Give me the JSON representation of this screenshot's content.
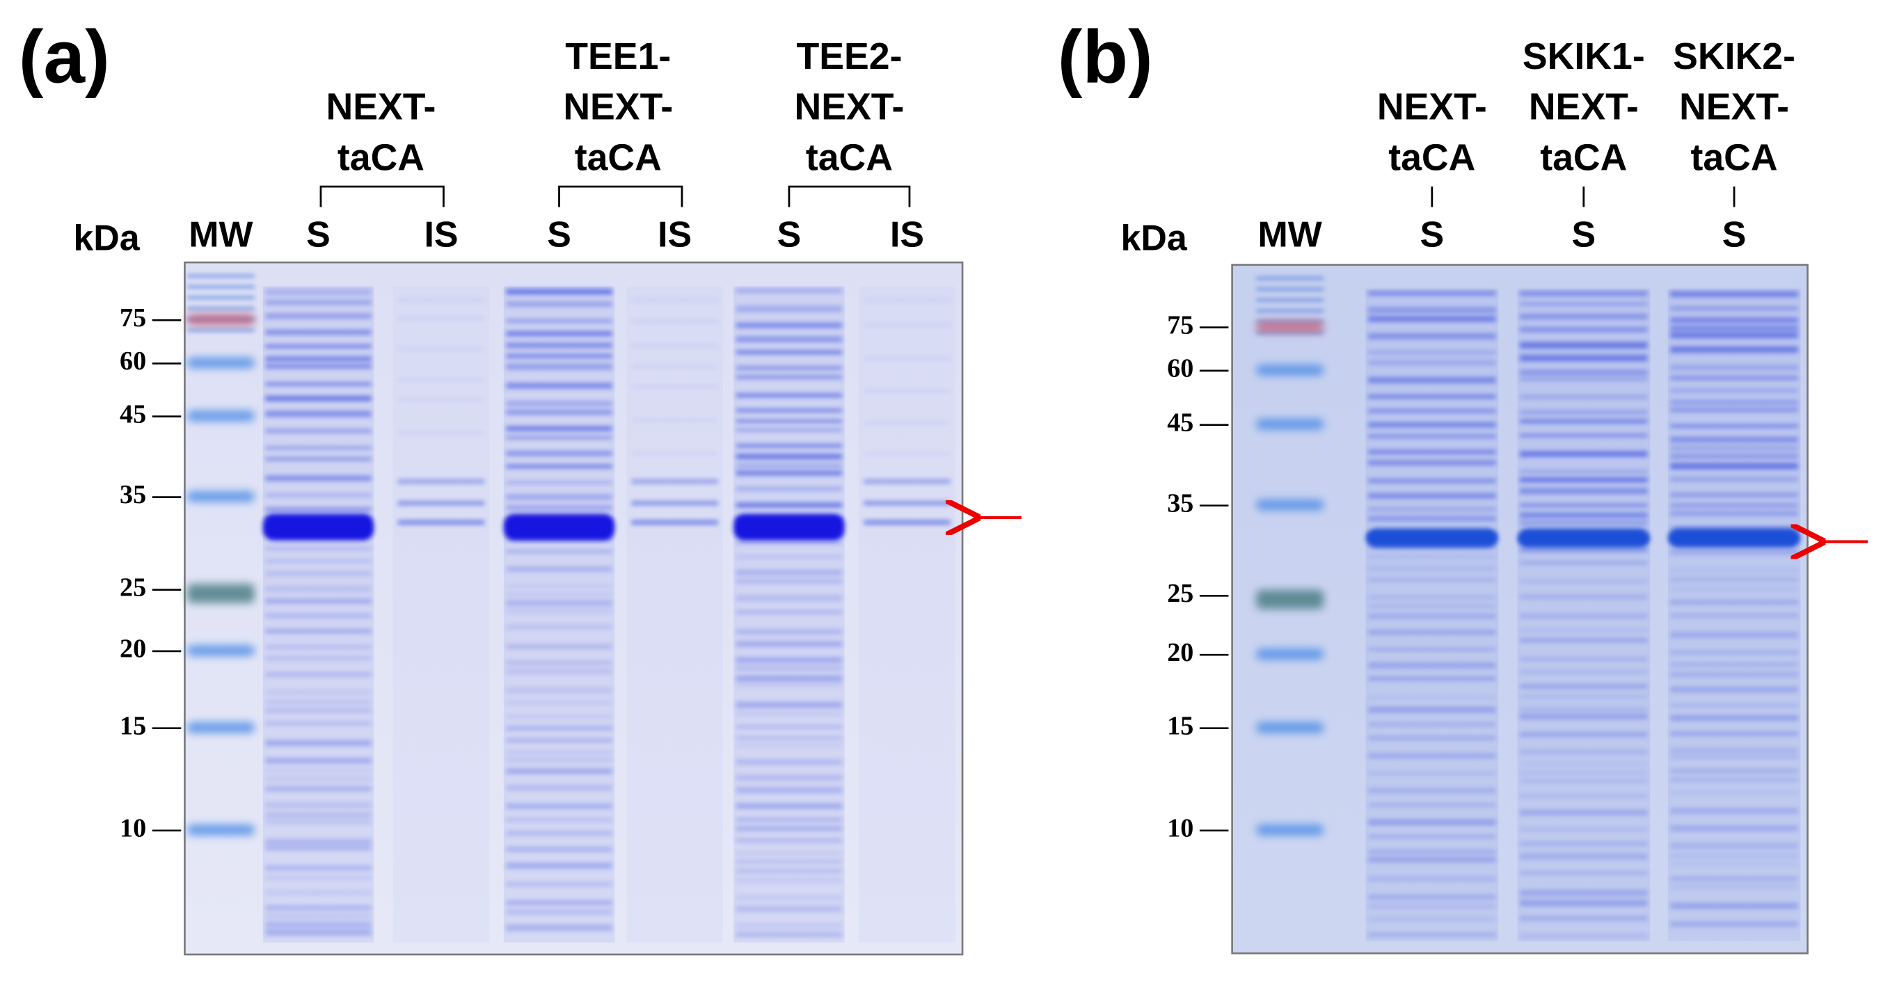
{
  "panels": [
    {
      "label": "(a)",
      "unit": "kDa",
      "groups": [
        {
          "header": [
            "NEXT-",
            "taCA"
          ]
        },
        {
          "header": [
            "TEE1-",
            "NEXT-",
            "taCA"
          ]
        },
        {
          "header": [
            "TEE2-",
            "NEXT-",
            "taCA"
          ]
        }
      ],
      "lanes": [
        "MW",
        "S",
        "IS",
        "S",
        "IS",
        "S",
        "IS"
      ],
      "markers": [
        "75",
        "60",
        "45",
        "35",
        "25",
        "20",
        "15",
        "10"
      ]
    },
    {
      "label": "(b)",
      "unit": "kDa",
      "groups": [
        {
          "header": [
            "NEXT-",
            "taCA"
          ]
        },
        {
          "header": [
            "SKIK1-",
            "NEXT-",
            "taCA"
          ]
        },
        {
          "header": [
            "SKIK2-",
            "NEXT-",
            "taCA"
          ]
        }
      ],
      "lanes": [
        "MW",
        "S",
        "S",
        "S"
      ],
      "markers": [
        "75",
        "60",
        "45",
        "35",
        "25",
        "20",
        "15",
        "10"
      ]
    }
  ]
}
